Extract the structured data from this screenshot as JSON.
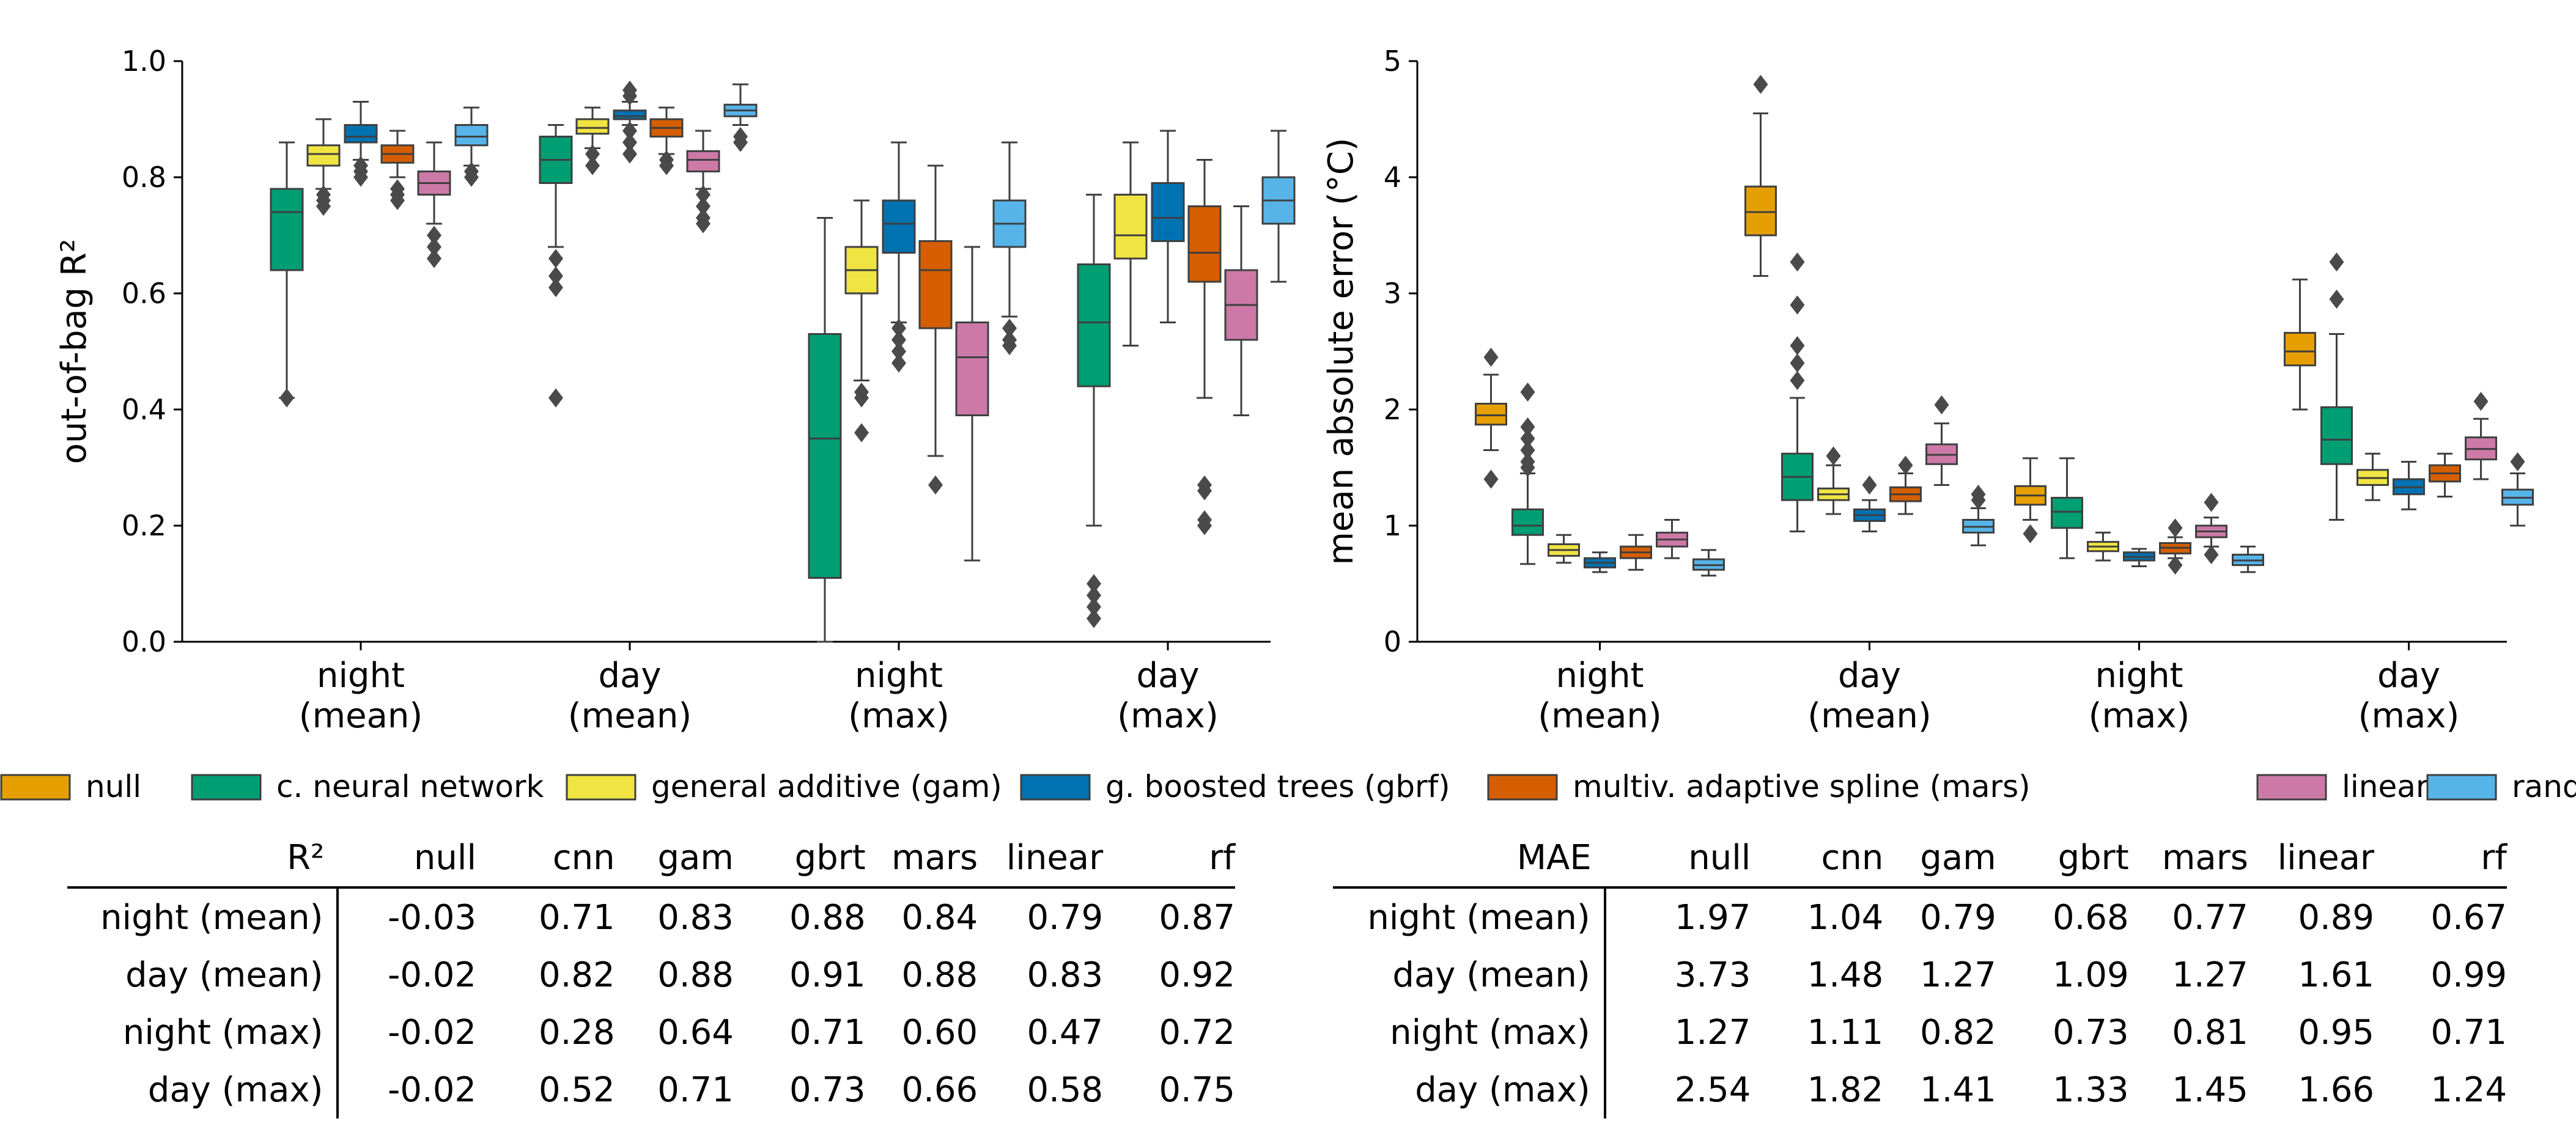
{
  "legend": [
    {
      "label": "null",
      "color": "#E69F00"
    },
    {
      "label": "c. neural network",
      "color": "#009E73"
    },
    {
      "label": "general additive (gam)",
      "color": "#F0E442"
    },
    {
      "label": "g. boosted trees (gbrf)",
      "color": "#0072B2"
    },
    {
      "label": "multiv. adaptive spline (mars)",
      "color": "#D55E00"
    },
    {
      "label": "linear",
      "color": "#CC79A7"
    },
    {
      "label": "random forest",
      "color": "#56B4E9"
    }
  ],
  "chart_data": [
    {
      "type": "box",
      "ylabel": "out-of-bag R²",
      "ylim": [
        0,
        1.0
      ],
      "yticks": [
        "0.0",
        "0.2",
        "0.4",
        "0.6",
        "0.8",
        "1.0"
      ],
      "categories": [
        "night\n(mean)",
        "day\n(mean)",
        "night\n(max)",
        "day\n(max)"
      ],
      "series": [
        {
          "name": "c. neural network",
          "boxes": [
            {
              "q1": 0.64,
              "median": 0.74,
              "q3": 0.78,
              "whislo": 0.42,
              "whishi": 0.86,
              "fliers": [
                0.42
              ]
            },
            {
              "q1": 0.79,
              "median": 0.83,
              "q3": 0.87,
              "whislo": 0.68,
              "whishi": 0.89,
              "fliers": [
                0.66,
                0.63,
                0.61,
                0.42
              ]
            },
            {
              "q1": 0.11,
              "median": 0.35,
              "q3": 0.53,
              "whislo": 0.0,
              "whishi": 0.73,
              "fliers": []
            },
            {
              "q1": 0.44,
              "median": 0.55,
              "q3": 0.65,
              "whislo": 0.2,
              "whishi": 0.77,
              "fliers": [
                0.1,
                0.08,
                0.06,
                0.04
              ]
            }
          ]
        },
        {
          "name": "general additive (gam)",
          "boxes": [
            {
              "q1": 0.82,
              "median": 0.84,
              "q3": 0.855,
              "whislo": 0.78,
              "whishi": 0.9,
              "fliers": [
                0.77,
                0.76,
                0.75
              ]
            },
            {
              "q1": 0.875,
              "median": 0.885,
              "q3": 0.9,
              "whislo": 0.85,
              "whishi": 0.92,
              "fliers": [
                0.84,
                0.82
              ]
            },
            {
              "q1": 0.6,
              "median": 0.64,
              "q3": 0.68,
              "whislo": 0.45,
              "whishi": 0.76,
              "fliers": [
                0.43,
                0.42,
                0.36
              ]
            },
            {
              "q1": 0.66,
              "median": 0.7,
              "q3": 0.77,
              "whislo": 0.51,
              "whishi": 0.86,
              "fliers": []
            }
          ]
        },
        {
          "name": "g. boosted trees (gbrf)",
          "boxes": [
            {
              "q1": 0.86,
              "median": 0.87,
              "q3": 0.89,
              "whislo": 0.83,
              "whishi": 0.93,
              "fliers": [
                0.82,
                0.81,
                0.8
              ]
            },
            {
              "q1": 0.9,
              "median": 0.905,
              "q3": 0.915,
              "whislo": 0.89,
              "whishi": 0.93,
              "fliers": [
                0.95,
                0.94,
                0.88,
                0.86,
                0.84
              ]
            },
            {
              "q1": 0.67,
              "median": 0.72,
              "q3": 0.76,
              "whislo": 0.55,
              "whishi": 0.86,
              "fliers": [
                0.54,
                0.52,
                0.5,
                0.48
              ]
            },
            {
              "q1": 0.69,
              "median": 0.73,
              "q3": 0.79,
              "whislo": 0.55,
              "whishi": 0.88,
              "fliers": []
            }
          ]
        },
        {
          "name": "multiv. adaptive spline (mars)",
          "boxes": [
            {
              "q1": 0.825,
              "median": 0.84,
              "q3": 0.855,
              "whislo": 0.8,
              "whishi": 0.88,
              "fliers": [
                0.78,
                0.77,
                0.76
              ]
            },
            {
              "q1": 0.87,
              "median": 0.885,
              "q3": 0.9,
              "whislo": 0.84,
              "whishi": 0.92,
              "fliers": [
                0.83,
                0.82
              ]
            },
            {
              "q1": 0.54,
              "median": 0.64,
              "q3": 0.69,
              "whislo": 0.32,
              "whishi": 0.82,
              "fliers": [
                0.27
              ]
            },
            {
              "q1": 0.62,
              "median": 0.67,
              "q3": 0.75,
              "whislo": 0.42,
              "whishi": 0.83,
              "fliers": [
                0.27,
                0.26,
                0.21,
                0.2
              ]
            }
          ]
        },
        {
          "name": "linear",
          "boxes": [
            {
              "q1": 0.77,
              "median": 0.79,
              "q3": 0.81,
              "whislo": 0.72,
              "whishi": 0.86,
              "fliers": [
                0.7,
                0.68,
                0.66
              ]
            },
            {
              "q1": 0.81,
              "median": 0.83,
              "q3": 0.845,
              "whislo": 0.78,
              "whishi": 0.88,
              "fliers": [
                0.77,
                0.75,
                0.73,
                0.72
              ]
            },
            {
              "q1": 0.39,
              "median": 0.49,
              "q3": 0.55,
              "whislo": 0.14,
              "whishi": 0.68,
              "fliers": []
            },
            {
              "q1": 0.52,
              "median": 0.58,
              "q3": 0.64,
              "whislo": 0.39,
              "whishi": 0.75,
              "fliers": []
            }
          ]
        },
        {
          "name": "random forest",
          "boxes": [
            {
              "q1": 0.855,
              "median": 0.87,
              "q3": 0.89,
              "whislo": 0.82,
              "whishi": 0.92,
              "fliers": [
                0.81,
                0.8
              ]
            },
            {
              "q1": 0.905,
              "median": 0.915,
              "q3": 0.925,
              "whislo": 0.89,
              "whishi": 0.96,
              "fliers": [
                0.87,
                0.86
              ]
            },
            {
              "q1": 0.68,
              "median": 0.72,
              "q3": 0.76,
              "whislo": 0.56,
              "whishi": 0.86,
              "fliers": [
                0.54,
                0.52,
                0.51
              ]
            },
            {
              "q1": 0.72,
              "median": 0.76,
              "q3": 0.8,
              "whislo": 0.62,
              "whishi": 0.88,
              "fliers": []
            }
          ]
        }
      ]
    },
    {
      "type": "box",
      "ylabel": "mean absolute error (°C)",
      "ylim": [
        0,
        5
      ],
      "yticks": [
        "0",
        "1",
        "2",
        "3",
        "4",
        "5"
      ],
      "categories": [
        "night\n(mean)",
        "day\n(mean)",
        "night\n(max)",
        "day\n(max)"
      ],
      "series": [
        {
          "name": "null",
          "boxes": [
            {
              "q1": 1.87,
              "median": 1.95,
              "q3": 2.05,
              "whislo": 1.65,
              "whishi": 2.3,
              "fliers": [
                2.45,
                1.4
              ]
            },
            {
              "q1": 3.5,
              "median": 3.7,
              "q3": 3.92,
              "whislo": 3.15,
              "whishi": 4.55,
              "fliers": [
                4.8
              ]
            },
            {
              "q1": 1.18,
              "median": 1.26,
              "q3": 1.34,
              "whislo": 1.05,
              "whishi": 1.58,
              "fliers": [
                0.93
              ]
            },
            {
              "q1": 2.38,
              "median": 2.5,
              "q3": 2.66,
              "whislo": 2.0,
              "whishi": 3.12,
              "fliers": []
            }
          ]
        },
        {
          "name": "c. neural network",
          "boxes": [
            {
              "q1": 0.92,
              "median": 1.0,
              "q3": 1.14,
              "whislo": 0.67,
              "whishi": 1.45,
              "fliers": [
                2.15,
                1.85,
                1.75,
                1.65,
                1.55,
                1.5
              ]
            },
            {
              "q1": 1.22,
              "median": 1.42,
              "q3": 1.62,
              "whislo": 0.95,
              "whishi": 2.1,
              "fliers": [
                3.27,
                2.9,
                2.55,
                2.4,
                2.25
              ]
            },
            {
              "q1": 0.98,
              "median": 1.12,
              "q3": 1.24,
              "whislo": 0.72,
              "whishi": 1.58,
              "fliers": []
            },
            {
              "q1": 1.53,
              "median": 1.74,
              "q3": 2.02,
              "whislo": 1.05,
              "whishi": 2.65,
              "fliers": [
                3.27,
                2.95
              ]
            }
          ]
        },
        {
          "name": "general additive (gam)",
          "boxes": [
            {
              "q1": 0.74,
              "median": 0.79,
              "q3": 0.84,
              "whislo": 0.68,
              "whishi": 0.92,
              "fliers": []
            },
            {
              "q1": 1.22,
              "median": 1.27,
              "q3": 1.32,
              "whislo": 1.1,
              "whishi": 1.52,
              "fliers": [
                1.6
              ]
            },
            {
              "q1": 0.78,
              "median": 0.82,
              "q3": 0.86,
              "whislo": 0.7,
              "whishi": 0.94,
              "fliers": []
            },
            {
              "q1": 1.35,
              "median": 1.41,
              "q3": 1.48,
              "whislo": 1.22,
              "whishi": 1.62,
              "fliers": []
            }
          ]
        },
        {
          "name": "g. boosted trees (gbrf)",
          "boxes": [
            {
              "q1": 0.64,
              "median": 0.68,
              "q3": 0.72,
              "whislo": 0.6,
              "whishi": 0.77,
              "fliers": []
            },
            {
              "q1": 1.04,
              "median": 1.09,
              "q3": 1.14,
              "whislo": 0.95,
              "whishi": 1.22,
              "fliers": [
                1.35
              ]
            },
            {
              "q1": 0.7,
              "median": 0.73,
              "q3": 0.77,
              "whislo": 0.65,
              "whishi": 0.8,
              "fliers": []
            },
            {
              "q1": 1.27,
              "median": 1.33,
              "q3": 1.4,
              "whislo": 1.14,
              "whishi": 1.55,
              "fliers": []
            }
          ]
        },
        {
          "name": "multiv. adaptive spline (mars)",
          "boxes": [
            {
              "q1": 0.72,
              "median": 0.77,
              "q3": 0.82,
              "whislo": 0.62,
              "whishi": 0.92,
              "fliers": []
            },
            {
              "q1": 1.21,
              "median": 1.27,
              "q3": 1.33,
              "whislo": 1.1,
              "whishi": 1.45,
              "fliers": [
                1.52
              ]
            },
            {
              "q1": 0.76,
              "median": 0.81,
              "q3": 0.85,
              "whislo": 0.72,
              "whishi": 0.9,
              "fliers": [
                0.98,
                0.66
              ]
            },
            {
              "q1": 1.38,
              "median": 1.45,
              "q3": 1.52,
              "whislo": 1.25,
              "whishi": 1.62,
              "fliers": []
            }
          ]
        },
        {
          "name": "linear",
          "boxes": [
            {
              "q1": 0.82,
              "median": 0.88,
              "q3": 0.94,
              "whislo": 0.72,
              "whishi": 1.05,
              "fliers": []
            },
            {
              "q1": 1.53,
              "median": 1.61,
              "q3": 1.7,
              "whislo": 1.35,
              "whishi": 1.88,
              "fliers": [
                2.04
              ]
            },
            {
              "q1": 0.9,
              "median": 0.95,
              "q3": 1.0,
              "whislo": 0.82,
              "whishi": 1.07,
              "fliers": [
                1.2,
                0.75
              ]
            },
            {
              "q1": 1.57,
              "median": 1.66,
              "q3": 1.76,
              "whislo": 1.4,
              "whishi": 1.92,
              "fliers": [
                2.07
              ]
            }
          ]
        },
        {
          "name": "random forest",
          "boxes": [
            {
              "q1": 0.62,
              "median": 0.66,
              "q3": 0.71,
              "whislo": 0.57,
              "whishi": 0.79,
              "fliers": []
            },
            {
              "q1": 0.94,
              "median": 0.99,
              "q3": 1.05,
              "whislo": 0.83,
              "whishi": 1.15,
              "fliers": [
                1.27,
                1.22
              ]
            },
            {
              "q1": 0.66,
              "median": 0.7,
              "q3": 0.75,
              "whislo": 0.6,
              "whishi": 0.82,
              "fliers": []
            },
            {
              "q1": 1.18,
              "median": 1.24,
              "q3": 1.31,
              "whislo": 1.0,
              "whishi": 1.45,
              "fliers": [
                1.55
              ]
            }
          ]
        }
      ]
    },
    {
      "type": "table",
      "corner": "R²",
      "columns": [
        "null",
        "cnn",
        "gam",
        "gbrt",
        "mars",
        "linear",
        "rf"
      ],
      "rows": [
        {
          "label": "night (mean)",
          "values": [
            "-0.03",
            "0.71",
            "0.83",
            "0.88",
            "0.84",
            "0.79",
            "0.87"
          ]
        },
        {
          "label": "day (mean)",
          "values": [
            "-0.02",
            "0.82",
            "0.88",
            "0.91",
            "0.88",
            "0.83",
            "0.92"
          ]
        },
        {
          "label": "night (max)",
          "values": [
            "-0.02",
            "0.28",
            "0.64",
            "0.71",
            "0.60",
            "0.47",
            "0.72"
          ]
        },
        {
          "label": "day (max)",
          "values": [
            "-0.02",
            "0.52",
            "0.71",
            "0.73",
            "0.66",
            "0.58",
            "0.75"
          ]
        }
      ]
    },
    {
      "type": "table",
      "corner": "MAE",
      "columns": [
        "null",
        "cnn",
        "gam",
        "gbrt",
        "mars",
        "linear",
        "rf"
      ],
      "rows": [
        {
          "label": "night (mean)",
          "values": [
            "1.97",
            "1.04",
            "0.79",
            "0.68",
            "0.77",
            "0.89",
            "0.67"
          ]
        },
        {
          "label": "day (mean)",
          "values": [
            "3.73",
            "1.48",
            "1.27",
            "1.09",
            "1.27",
            "1.61",
            "0.99"
          ]
        },
        {
          "label": "night (max)",
          "values": [
            "1.27",
            "1.11",
            "0.82",
            "0.73",
            "0.81",
            "0.95",
            "0.71"
          ]
        },
        {
          "label": "day (max)",
          "values": [
            "2.54",
            "1.82",
            "1.41",
            "1.33",
            "1.45",
            "1.66",
            "1.24"
          ]
        }
      ]
    }
  ]
}
